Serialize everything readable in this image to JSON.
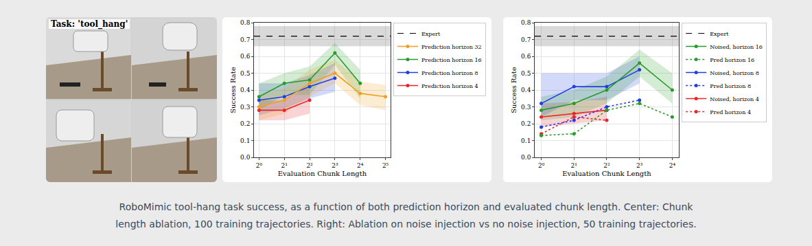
{
  "image_panel": {
    "label": "Task: 'tool_hang'"
  },
  "caption": "RoboMimic tool-hang task success, as a function of both prediction horizon and evaluated chunk length. Center: Chunk length ablation, 100 training trajectories. Right: Ablation on noise injection vs no noise injection, 50 training trajectories.",
  "chart_data": [
    {
      "type": "line",
      "x_label": "Evaluation Chunk Length",
      "y_label": "Success Rate",
      "log": "x",
      "grid": true,
      "legend": "right",
      "xlim": [
        0.87,
        36.8
      ],
      "xticks": [
        {
          "value": 1,
          "label": "2⁰"
        },
        {
          "value": 2,
          "label": "2¹"
        },
        {
          "value": 4,
          "label": "2²"
        },
        {
          "value": 8,
          "label": "2³"
        },
        {
          "value": 16,
          "label": "2⁴"
        },
        {
          "value": 32,
          "label": "2⁵"
        }
      ],
      "ylim": [
        0,
        0.8
      ],
      "yticks": [
        {
          "value": 0,
          "label": "0.0"
        },
        0.1,
        0.2,
        0.3,
        0.4,
        0.5,
        0.6,
        0.7,
        0.8
      ],
      "series": [
        {
          "name": "Prediction horizon 4",
          "color": "#e8262a",
          "marker": "circle",
          "line_style": "solid",
          "x": [
            1,
            2,
            4
          ],
          "values": [
            0.28,
            0.28,
            0.34
          ],
          "lower": [
            0.22,
            0.22,
            0.26
          ],
          "upper": [
            0.34,
            0.34,
            0.42
          ]
        },
        {
          "name": "Prediction horizon 8",
          "color": "#1f3fe0",
          "marker": "circle",
          "line_style": "solid",
          "x": [
            1,
            2,
            4,
            8
          ],
          "values": [
            0.34,
            0.36,
            0.42,
            0.47
          ],
          "lower": [
            0.25,
            0.29,
            0.35,
            0.39
          ],
          "upper": [
            0.44,
            0.44,
            0.49,
            0.56
          ]
        },
        {
          "name": "Prediction horizon 16",
          "color": "#2a9a2a",
          "marker": "circle",
          "line_style": "solid",
          "x": [
            1,
            2,
            4,
            8,
            16
          ],
          "values": [
            0.36,
            0.44,
            0.46,
            0.62,
            0.44
          ],
          "lower": [
            0.28,
            0.37,
            0.37,
            0.55,
            0.35
          ],
          "upper": [
            0.44,
            0.5,
            0.54,
            0.68,
            0.52
          ]
        },
        {
          "name": "Prediction horizon 32",
          "color": "#f0a020",
          "marker": "circle",
          "line_style": "solid",
          "x": [
            1,
            2,
            4,
            8,
            16,
            32
          ],
          "values": [
            0.3,
            0.34,
            0.44,
            0.5,
            0.38,
            0.36
          ],
          "lower": [
            0.22,
            0.26,
            0.36,
            0.44,
            0.31,
            0.28
          ],
          "upper": [
            0.37,
            0.41,
            0.52,
            0.58,
            0.45,
            0.43
          ]
        }
      ],
      "expert": {
        "name": "Expert",
        "color": "#000000",
        "line_style": "dashed",
        "value": 0.72,
        "lower": 0.66,
        "upper": 0.78
      }
    },
    {
      "type": "line",
      "x_label": "Evaluation Chunk Length",
      "y_label": "Success Rate",
      "log": "x",
      "grid": true,
      "legend": "right",
      "xlim": [
        0.87,
        18.4
      ],
      "xticks": [
        {
          "value": 1,
          "label": "2⁰"
        },
        {
          "value": 2,
          "label": "2¹"
        },
        {
          "value": 4,
          "label": "2²"
        },
        {
          "value": 8,
          "label": "2³"
        },
        {
          "value": 16,
          "label": "2⁴"
        }
      ],
      "ylim": [
        0,
        0.8
      ],
      "yticks": [
        {
          "value": 0,
          "label": "0.0"
        },
        0.1,
        0.2,
        0.3,
        0.4,
        0.5,
        0.6,
        0.7,
        0.8
      ],
      "series": [
        {
          "name": "Pred horizon 4",
          "color": "#e8262a",
          "marker": "circle",
          "line_style": "dotted",
          "x": [
            1,
            2,
            4
          ],
          "values": [
            0.14,
            0.24,
            0.22
          ]
        },
        {
          "name": "Noised, horizon 4",
          "color": "#e8262a",
          "marker": "circle",
          "line_style": "solid",
          "x": [
            1,
            2,
            4
          ],
          "values": [
            0.24,
            0.26,
            0.28
          ],
          "lower": [
            0.18,
            0.2,
            0.22
          ],
          "upper": [
            0.32,
            0.33,
            0.36
          ]
        },
        {
          "name": "Pred horizon 8",
          "color": "#1f3fe0",
          "marker": "circle",
          "line_style": "dotted",
          "x": [
            1,
            2,
            4,
            8
          ],
          "values": [
            0.18,
            0.22,
            0.3,
            0.34
          ]
        },
        {
          "name": "Noised, horizon 8",
          "color": "#1f3fe0",
          "marker": "circle",
          "line_style": "solid",
          "x": [
            1,
            2,
            4,
            8
          ],
          "values": [
            0.32,
            0.42,
            0.42,
            0.52
          ],
          "lower": [
            0.24,
            0.34,
            0.34,
            0.44
          ],
          "upper": [
            0.5,
            0.5,
            0.5,
            0.6
          ]
        },
        {
          "name": "Pred horizon 16",
          "color": "#2a9a2a",
          "marker": "circle",
          "line_style": "dotted",
          "x": [
            1,
            2,
            4,
            8,
            16
          ],
          "values": [
            0.13,
            0.14,
            0.28,
            0.32,
            0.24
          ]
        },
        {
          "name": "Noised, horizon 16",
          "color": "#2a9a2a",
          "marker": "circle",
          "line_style": "solid",
          "x": [
            1,
            2,
            4,
            8,
            16
          ],
          "values": [
            0.28,
            0.32,
            0.4,
            0.56,
            0.4
          ],
          "lower": [
            0.22,
            0.24,
            0.32,
            0.48,
            0.32
          ],
          "upper": [
            0.36,
            0.4,
            0.48,
            0.64,
            0.5
          ]
        }
      ],
      "expert": {
        "name": "Expert",
        "color": "#000000",
        "line_style": "dashed",
        "value": 0.72,
        "lower": 0.66,
        "upper": 0.78
      }
    }
  ]
}
